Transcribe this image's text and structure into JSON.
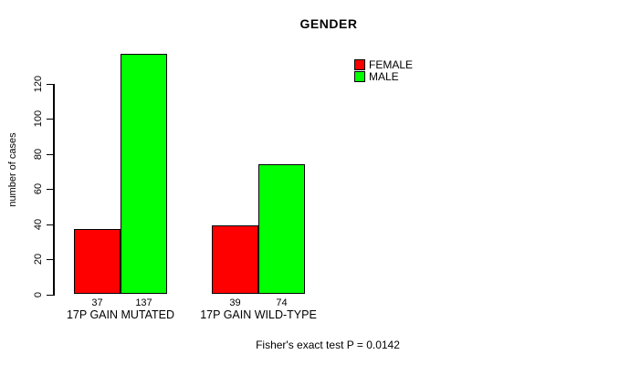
{
  "chart_data": {
    "type": "bar",
    "title": "GENDER",
    "xlabel": "",
    "ylabel": "number of cases",
    "categories": [
      "17P GAIN MUTATED",
      "17P GAIN WILD-TYPE"
    ],
    "series": [
      {
        "name": "FEMALE",
        "color": "#ff0000",
        "values": [
          37,
          39
        ]
      },
      {
        "name": "MALE",
        "color": "#00ff00",
        "values": [
          137,
          74
        ]
      }
    ],
    "bar_value_labels": [
      [
        "37",
        "137"
      ],
      [
        "39",
        "74"
      ]
    ],
    "yticks": [
      0,
      20,
      40,
      60,
      80,
      100,
      120
    ],
    "ylim": [
      0,
      137
    ],
    "grid": false,
    "legend_position": "top-right",
    "annotation": "Fisher's exact test P = 0.0142"
  }
}
